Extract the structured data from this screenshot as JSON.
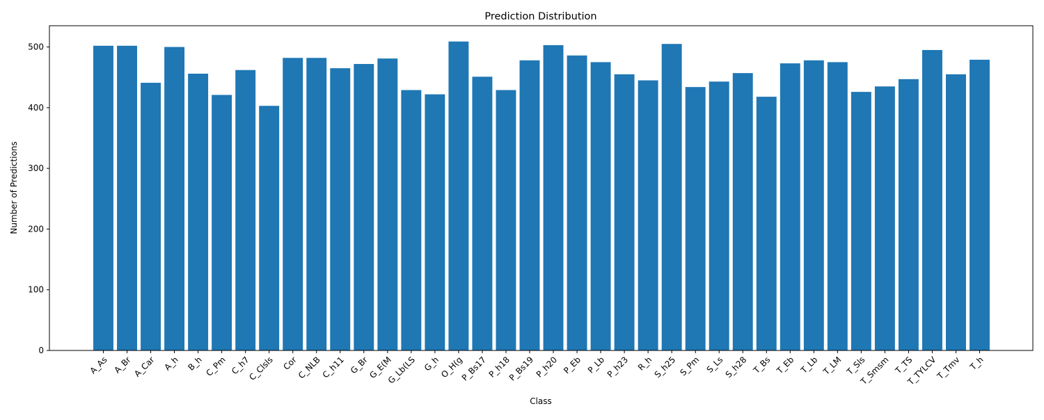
{
  "chart_data": {
    "type": "bar",
    "title": "Prediction Distribution",
    "xlabel": "Class",
    "ylabel": "Number of Predictions",
    "ylim": [
      0,
      535
    ],
    "yticks": [
      0,
      100,
      200,
      300,
      400,
      500
    ],
    "grid": false,
    "legend": "none",
    "bar_color": "#1f77b4",
    "categories": [
      "A_As",
      "A_Br",
      "A_Car",
      "A_h",
      "B_h",
      "C_Pm",
      "C_h7",
      "C_Clsls",
      "Cor",
      "C_NLB",
      "C_h11",
      "G_Br",
      "G_E(M",
      "G_Lb(LS",
      "G_h",
      "O_H(g",
      "P_Bs17",
      "P_h18",
      "P_Bs19",
      "P_h20",
      "P_Eb",
      "P_Lb",
      "P_h23",
      "R_h",
      "S_h25",
      "S_Pm",
      "S_Ls",
      "S_h28",
      "T_Bs",
      "T_Eb",
      "T_Lb",
      "T_LM",
      "T_Sls",
      "T_Smsm",
      "T_TS",
      "T_TYLCV",
      "T_Tmv",
      "T_h"
    ],
    "values": [
      502,
      502,
      441,
      500,
      456,
      421,
      462,
      403,
      482,
      482,
      465,
      472,
      481,
      429,
      422,
      509,
      451,
      429,
      478,
      503,
      486,
      475,
      455,
      445,
      505,
      434,
      443,
      457,
      418,
      473,
      478,
      475,
      426,
      435,
      447,
      495,
      455,
      479
    ]
  }
}
